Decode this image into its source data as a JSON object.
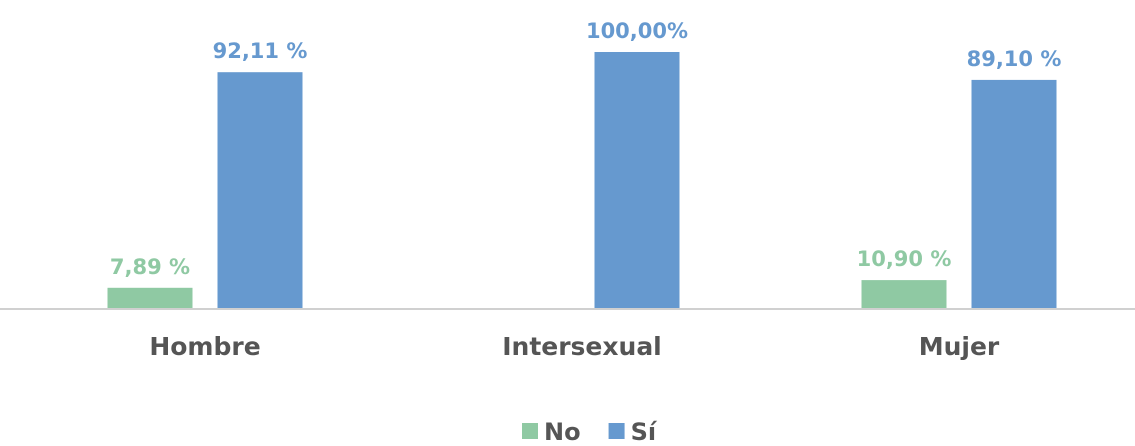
{
  "chart_data": {
    "type": "bar",
    "categories": [
      "Hombre",
      "Intersexual",
      "Mujer"
    ],
    "series": [
      {
        "name": "No",
        "color": "#8fc9a3",
        "values": [
          7.89,
          null,
          10.9
        ],
        "value_labels": [
          "7,89 %",
          null,
          "10,90 %"
        ]
      },
      {
        "name": "Sí",
        "color": "#6699cf",
        "values": [
          92.11,
          100.0,
          89.1
        ],
        "value_labels": [
          "92,11 %",
          "100,00%",
          "89,10 %"
        ]
      }
    ],
    "legend": "bottom"
  }
}
